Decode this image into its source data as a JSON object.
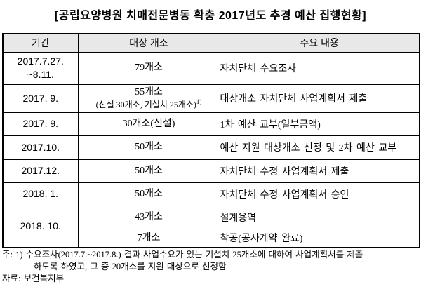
{
  "title": "[공립요양병원 치매전문병동 확충 2017년도 추경 예산 집행현황]",
  "table": {
    "headers": {
      "period": "기간",
      "count": "대상 개소",
      "content": "주요 내용"
    },
    "rows": [
      {
        "period_line1": "2017.7.27.",
        "period_line2": "~8.11.",
        "count": "79개소",
        "content": "자치단체 수요조사"
      },
      {
        "period": "2017. 9.",
        "count": "55개소",
        "count_detail": "(신설 30개소, 기설치 25개소)",
        "count_footnote_ref": "1)",
        "content": "대상개소 자치단체 사업계획서 제출"
      },
      {
        "period": "2017. 9.",
        "count": "30개소(신설)",
        "content": "1차 예산 교부(일부금액)"
      },
      {
        "period": "2017.10.",
        "count": "50개소",
        "content": "예산 지원 대상개소 선정 및 2차 예산 교부"
      },
      {
        "period": "2017.12.",
        "count": "50개소",
        "content": "자치단체 수정 사업계획서 제출"
      },
      {
        "period": "2018. 1.",
        "count": "50개소",
        "content": "자치단체 수정 사업계획서 승인"
      },
      {
        "period": "2018. 10.",
        "sub1_count": "43개소",
        "sub1_content": "설계용역",
        "sub2_count": "7개소",
        "sub2_content": "착공(공사계약 완료)"
      }
    ]
  },
  "footnotes": {
    "line1": "주: 1) 수요조사(2017.7.~2017.8.) 결과 사업수요가 있는 기설치 25개소에 대하여 사업계획서를 제출",
    "line2": "하도록 하였고, 그 중 20개소를 지원 대상으로 선정함",
    "source": "자료: 보건복지부"
  },
  "colors": {
    "header_bg": "#e8e8e8",
    "border": "#000000",
    "text": "#000000",
    "page_bg": "#ffffff",
    "dotted_divider": "#777777"
  }
}
